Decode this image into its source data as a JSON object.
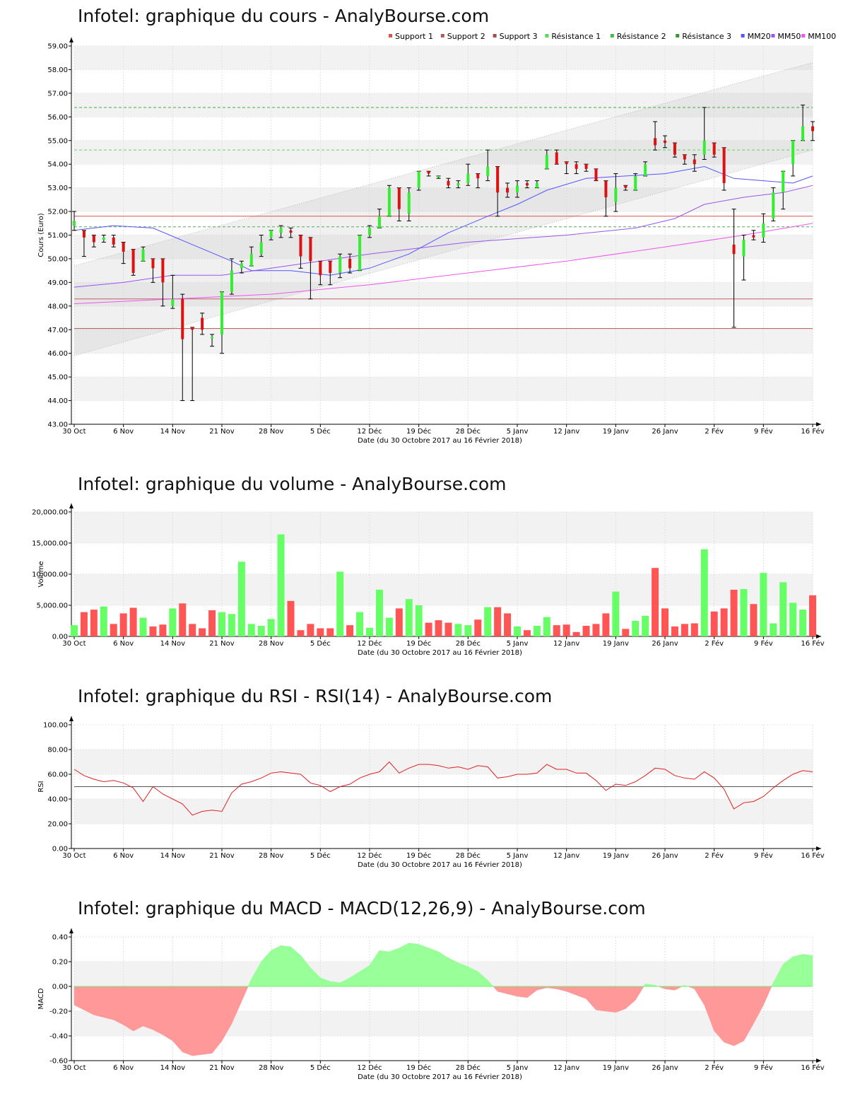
{
  "chart_data": [
    {
      "type": "candlestick",
      "title": "Infotel: graphique du cours - AnalyBourse.com",
      "xlabel": "Date (du 30 Octobre 2017 au 16 Février 2018)",
      "ylabel": "Cours (Euro)",
      "ylim": [
        43,
        59
      ],
      "x_tick_labels": [
        "30 Oct",
        "6 Nov",
        "14 Nov",
        "21 Nov",
        "28 Nov",
        "5 Déc",
        "12 Déc",
        "19 Déc",
        "28 Déc",
        "5 Janv",
        "12 Janv",
        "19 Janv",
        "26 Janv",
        "2 Fév",
        "9 Fév",
        "16 Fév"
      ],
      "y_tick_labels": [
        "43.00",
        "44.00",
        "45.00",
        "46.00",
        "47.00",
        "48.00",
        "49.00",
        "50.00",
        "51.00",
        "52.00",
        "53.00",
        "54.00",
        "55.00",
        "56.00",
        "57.00",
        "58.00",
        "59.00"
      ],
      "legend": [
        "Support 1",
        "Support 2",
        "Support 3",
        "Résistance 1",
        "Résistance 2",
        "Résistance 3",
        "MM20",
        "MM50",
        "MM100"
      ],
      "legend_colors": [
        "#d9534f",
        "#b05b5b",
        "#a04f4f",
        "#55dd55",
        "#44bb44",
        "#339933",
        "#5555ff",
        "#9955ee",
        "#ee55ee"
      ],
      "candles": [
        {
          "o": 51.4,
          "h": 52.0,
          "l": 51.2,
          "c": 51.6
        },
        {
          "o": 51.2,
          "h": 51.2,
          "l": 50.1,
          "c": 50.9
        },
        {
          "o": 51.0,
          "h": 51.0,
          "l": 50.5,
          "c": 50.7
        },
        {
          "o": 50.8,
          "h": 51.0,
          "l": 50.7,
          "c": 50.9
        },
        {
          "o": 50.9,
          "h": 51.0,
          "l": 50.5,
          "c": 50.6
        },
        {
          "o": 50.7,
          "h": 50.7,
          "l": 49.8,
          "c": 50.3
        },
        {
          "o": 50.4,
          "h": 50.4,
          "l": 49.3,
          "c": 49.4
        },
        {
          "o": 49.9,
          "h": 50.5,
          "l": 49.9,
          "c": 50.4
        },
        {
          "o": 50.0,
          "h": 50.0,
          "l": 49.0,
          "c": 49.6
        },
        {
          "o": 50.0,
          "h": 50.0,
          "l": 48.0,
          "c": 49.0
        },
        {
          "o": 48.0,
          "h": 49.3,
          "l": 47.9,
          "c": 48.3
        },
        {
          "o": 48.3,
          "h": 48.5,
          "l": 44.0,
          "c": 46.6
        },
        {
          "o": 47.1,
          "h": 47.1,
          "l": 44.0,
          "c": 47.0
        },
        {
          "o": 47.5,
          "h": 47.7,
          "l": 46.8,
          "c": 47.0
        },
        {
          "o": 46.7,
          "h": 46.8,
          "l": 46.3,
          "c": 46.7
        },
        {
          "o": 46.8,
          "h": 48.6,
          "l": 46.0,
          "c": 48.6
        },
        {
          "o": 48.6,
          "h": 50.0,
          "l": 48.5,
          "c": 49.5
        },
        {
          "o": 49.6,
          "h": 49.9,
          "l": 49.4,
          "c": 49.8
        },
        {
          "o": 49.7,
          "h": 50.5,
          "l": 49.7,
          "c": 50.2
        },
        {
          "o": 50.2,
          "h": 51.0,
          "l": 50.1,
          "c": 50.7
        },
        {
          "o": 50.9,
          "h": 51.2,
          "l": 50.8,
          "c": 51.2
        },
        {
          "o": 51.1,
          "h": 51.4,
          "l": 50.9,
          "c": 51.3
        },
        {
          "o": 51.2,
          "h": 51.3,
          "l": 50.9,
          "c": 51.1
        },
        {
          "o": 51.0,
          "h": 51.0,
          "l": 49.6,
          "c": 50.1
        },
        {
          "o": 50.9,
          "h": 50.9,
          "l": 48.3,
          "c": 49.9
        },
        {
          "o": 49.9,
          "h": 49.9,
          "l": 48.9,
          "c": 49.3
        },
        {
          "o": 49.9,
          "h": 49.9,
          "l": 48.9,
          "c": 49.4
        },
        {
          "o": 49.4,
          "h": 50.2,
          "l": 49.2,
          "c": 50.1
        },
        {
          "o": 50.0,
          "h": 50.2,
          "l": 49.4,
          "c": 49.6
        },
        {
          "o": 49.5,
          "h": 51.0,
          "l": 49.5,
          "c": 51.0
        },
        {
          "o": 51.0,
          "h": 51.4,
          "l": 50.9,
          "c": 51.3
        },
        {
          "o": 51.3,
          "h": 52.1,
          "l": 51.3,
          "c": 51.8
        },
        {
          "o": 51.8,
          "h": 53.1,
          "l": 51.8,
          "c": 53.0
        },
        {
          "o": 53.0,
          "h": 53.0,
          "l": 51.6,
          "c": 52.1
        },
        {
          "o": 51.9,
          "h": 53.0,
          "l": 51.6,
          "c": 52.8
        },
        {
          "o": 53.0,
          "h": 53.7,
          "l": 52.9,
          "c": 53.7
        },
        {
          "o": 53.7,
          "h": 53.7,
          "l": 53.5,
          "c": 53.6
        },
        {
          "o": 53.5,
          "h": 53.5,
          "l": 53.4,
          "c": 53.5
        },
        {
          "o": 53.3,
          "h": 53.4,
          "l": 53.0,
          "c": 53.1
        },
        {
          "o": 53.1,
          "h": 53.3,
          "l": 53.0,
          "c": 53.2
        },
        {
          "o": 53.2,
          "h": 54.0,
          "l": 53.1,
          "c": 53.6
        },
        {
          "o": 53.6,
          "h": 53.6,
          "l": 53.0,
          "c": 53.4
        },
        {
          "o": 53.5,
          "h": 54.6,
          "l": 53.3,
          "c": 53.9
        },
        {
          "o": 53.9,
          "h": 53.9,
          "l": 51.8,
          "c": 52.8
        },
        {
          "o": 53.0,
          "h": 53.2,
          "l": 52.6,
          "c": 52.8
        },
        {
          "o": 52.8,
          "h": 53.3,
          "l": 52.6,
          "c": 53.1
        },
        {
          "o": 53.2,
          "h": 53.3,
          "l": 53.0,
          "c": 53.1
        },
        {
          "o": 53.0,
          "h": 53.3,
          "l": 53.0,
          "c": 53.2
        },
        {
          "o": 53.8,
          "h": 54.6,
          "l": 53.8,
          "c": 54.4
        },
        {
          "o": 54.5,
          "h": 54.6,
          "l": 54.0,
          "c": 54.0
        },
        {
          "o": 54.1,
          "h": 54.1,
          "l": 53.6,
          "c": 54.0
        },
        {
          "o": 54.0,
          "h": 54.1,
          "l": 53.6,
          "c": 53.8
        },
        {
          "o": 54.0,
          "h": 54.0,
          "l": 53.7,
          "c": 53.8
        },
        {
          "o": 53.8,
          "h": 53.8,
          "l": 53.3,
          "c": 53.3
        },
        {
          "o": 53.3,
          "h": 53.3,
          "l": 51.8,
          "c": 52.6
        },
        {
          "o": 52.4,
          "h": 53.6,
          "l": 52.0,
          "c": 53.0
        },
        {
          "o": 53.1,
          "h": 53.1,
          "l": 52.9,
          "c": 53.0
        },
        {
          "o": 52.9,
          "h": 53.6,
          "l": 52.9,
          "c": 53.5
        },
        {
          "o": 53.5,
          "h": 54.1,
          "l": 53.5,
          "c": 54.0
        },
        {
          "o": 55.1,
          "h": 55.8,
          "l": 54.6,
          "c": 54.8
        },
        {
          "o": 55.0,
          "h": 55.2,
          "l": 54.7,
          "c": 54.9
        },
        {
          "o": 54.9,
          "h": 54.9,
          "l": 54.3,
          "c": 54.4
        },
        {
          "o": 54.4,
          "h": 54.4,
          "l": 54.0,
          "c": 54.2
        },
        {
          "o": 54.2,
          "h": 54.4,
          "l": 53.7,
          "c": 54.0
        },
        {
          "o": 54.4,
          "h": 56.4,
          "l": 54.2,
          "c": 55.0
        },
        {
          "o": 54.9,
          "h": 54.9,
          "l": 54.3,
          "c": 54.4
        },
        {
          "o": 54.7,
          "h": 54.7,
          "l": 52.9,
          "c": 53.2
        },
        {
          "o": 50.6,
          "h": 52.1,
          "l": 47.1,
          "c": 50.2
        },
        {
          "o": 50.1,
          "h": 51.0,
          "l": 49.1,
          "c": 50.8
        },
        {
          "o": 51.0,
          "h": 51.2,
          "l": 50.8,
          "c": 50.9
        },
        {
          "o": 50.9,
          "h": 51.9,
          "l": 50.7,
          "c": 51.5
        },
        {
          "o": 51.7,
          "h": 53.0,
          "l": 51.6,
          "c": 52.8
        },
        {
          "o": 52.8,
          "h": 53.7,
          "l": 52.1,
          "c": 53.7
        },
        {
          "o": 54.0,
          "h": 55.0,
          "l": 53.5,
          "c": 55.0
        },
        {
          "o": 55.0,
          "h": 56.5,
          "l": 55.0,
          "c": 55.6
        },
        {
          "o": 55.6,
          "h": 55.8,
          "l": 55.0,
          "c": 55.4
        }
      ],
      "support": [
        51.8,
        48.3,
        47.05
      ],
      "resistance": [
        51.35,
        54.6,
        56.4
      ],
      "channel_upper": [
        49.7,
        58.3
      ],
      "channel_lower": [
        45.9,
        54.6
      ],
      "mm20": [
        [
          0,
          51.2
        ],
        [
          4,
          51.4
        ],
        [
          8,
          51.3
        ],
        [
          12,
          50.6
        ],
        [
          16,
          49.9
        ],
        [
          18,
          49.5
        ],
        [
          22,
          49.5
        ],
        [
          26,
          49.3
        ],
        [
          30,
          49.6
        ],
        [
          34,
          50.2
        ],
        [
          38,
          51.1
        ],
        [
          42,
          51.8
        ],
        [
          45,
          52.3
        ],
        [
          48,
          52.9
        ],
        [
          52,
          53.4
        ],
        [
          56,
          53.5
        ],
        [
          60,
          53.6
        ],
        [
          64,
          53.9
        ],
        [
          67,
          53.4
        ],
        [
          70,
          53.3
        ],
        [
          73,
          53.2
        ],
        [
          75,
          53.5
        ]
      ],
      "mm50": [
        [
          0,
          48.8
        ],
        [
          5,
          49.0
        ],
        [
          10,
          49.3
        ],
        [
          15,
          49.3
        ],
        [
          20,
          49.6
        ],
        [
          30,
          50.2
        ],
        [
          40,
          50.7
        ],
        [
          50,
          51.0
        ],
        [
          57,
          51.3
        ],
        [
          61,
          51.7
        ],
        [
          64,
          52.3
        ],
        [
          68,
          52.6
        ],
        [
          72,
          52.8
        ],
        [
          75,
          53.1
        ]
      ],
      "mm100": [
        [
          0,
          48.1
        ],
        [
          10,
          48.3
        ],
        [
          20,
          48.5
        ],
        [
          30,
          48.9
        ],
        [
          40,
          49.4
        ],
        [
          50,
          49.9
        ],
        [
          60,
          50.5
        ],
        [
          68,
          51.0
        ],
        [
          75,
          51.5
        ]
      ]
    },
    {
      "type": "bar",
      "title": "Infotel: graphique du volume - AnalyBourse.com",
      "xlabel": "Date (du 30 Octobre 2017 au 16 Février 2018)",
      "ylabel": "Volume",
      "ylim": [
        0,
        20000
      ],
      "y_tick_labels": [
        "0.00",
        "5,000.00",
        "10,000.00",
        "15,000.00",
        "20,000.00"
      ],
      "x_tick_labels": [
        "30 Oct",
        "6 Nov",
        "14 Nov",
        "21 Nov",
        "28 Nov",
        "5 Déc",
        "12 Déc",
        "19 Déc",
        "28 Déc",
        "5 Janv",
        "12 Janv",
        "19 Janv",
        "26 Janv",
        "2 Fév",
        "9 Fév",
        "16 Fév"
      ],
      "values": [
        1800,
        3900,
        4300,
        4800,
        2000,
        3700,
        4600,
        3000,
        1600,
        1900,
        4500,
        5300,
        2000,
        1300,
        4200,
        3900,
        3600,
        12000,
        2000,
        1700,
        2800,
        16400,
        5700,
        1000,
        2000,
        1300,
        1300,
        10400,
        1800,
        3900,
        1400,
        7500,
        3000,
        4500,
        6000,
        5000,
        2200,
        2600,
        2200,
        2000,
        1800,
        2700,
        4700,
        4700,
        3700,
        1600,
        1000,
        1700,
        3100,
        1800,
        1900,
        700,
        1700,
        2000,
        3700,
        7200,
        1200,
        2500,
        3300,
        11000,
        4500,
        1600,
        2000,
        2100,
        14000,
        4000,
        4500,
        7500,
        7600,
        5200,
        10200,
        2100,
        8700,
        5400,
        4300,
        6600
      ],
      "up": [
        true,
        false,
        false,
        true,
        false,
        false,
        false,
        true,
        false,
        false,
        true,
        false,
        false,
        false,
        false,
        true,
        true,
        true,
        true,
        true,
        true,
        true,
        false,
        false,
        false,
        false,
        false,
        true,
        false,
        true,
        true,
        true,
        true,
        false,
        true,
        true,
        false,
        false,
        false,
        true,
        true,
        false,
        true,
        false,
        false,
        true,
        false,
        true,
        true,
        false,
        false,
        false,
        false,
        false,
        false,
        true,
        false,
        true,
        true,
        false,
        false,
        false,
        false,
        false,
        true,
        false,
        false,
        false,
        true,
        false,
        true,
        true,
        true,
        true,
        true,
        false
      ]
    },
    {
      "type": "line",
      "title": "Infotel: graphique du RSI - RSI(14) - AnalyBourse.com",
      "xlabel": "Date (du 30 Octobre 2017 au 16 Février 2018)",
      "ylabel": "RSI",
      "ylim": [
        0,
        100
      ],
      "y_tick_labels": [
        "0.00",
        "20.00",
        "40.00",
        "60.00",
        "80.00",
        "100.00"
      ],
      "x_tick_labels": [
        "30 Oct",
        "6 Nov",
        "14 Nov",
        "21 Nov",
        "28 Nov",
        "5 Déc",
        "12 Déc",
        "19 Déc",
        "28 Déc",
        "5 Janv",
        "12 Janv",
        "19 Janv",
        "26 Janv",
        "2 Fév",
        "9 Fév",
        "16 Fév"
      ],
      "reference_line": 50,
      "values": [
        64,
        59,
        56,
        54,
        55,
        53,
        49,
        38,
        50,
        44,
        40,
        36,
        27,
        30,
        31,
        30,
        45,
        52,
        54,
        57,
        61,
        62,
        61,
        60,
        53,
        51,
        46,
        50,
        52,
        57,
        60,
        62,
        70,
        61,
        65,
        68,
        68,
        67,
        65,
        66,
        64,
        67,
        66,
        57,
        58,
        60,
        60,
        61,
        68,
        64,
        64,
        61,
        61,
        55,
        47,
        52,
        51,
        54,
        59,
        65,
        64,
        59,
        57,
        56,
        62,
        57,
        48,
        32,
        37,
        38,
        42,
        49,
        55,
        60,
        63,
        62
      ]
    },
    {
      "type": "area",
      "title": "Infotel: graphique du MACD - MACD(12,26,9) - AnalyBourse.com",
      "xlabel": "Date (du 30 Octobre 2017 au 16 Février 2018)",
      "ylabel": "MACD",
      "ylim": [
        -0.6,
        0.4
      ],
      "y_tick_labels": [
        "-0.60",
        "-0.40",
        "-0.20",
        "0.00",
        "0.20",
        "0.40"
      ],
      "x_tick_labels": [
        "30 Oct",
        "6 Nov",
        "14 Nov",
        "21 Nov",
        "28 Nov",
        "5 Déc",
        "12 Déc",
        "19 Déc",
        "28 Déc",
        "5 Janv",
        "12 Janv",
        "19 Janv",
        "26 Janv",
        "2 Fév",
        "9 Fév",
        "16 Fév"
      ],
      "positive_color": "#99ff99",
      "negative_color": "#ff9999",
      "values": [
        -0.15,
        -0.19,
        -0.23,
        -0.25,
        -0.27,
        -0.31,
        -0.36,
        -0.32,
        -0.35,
        -0.39,
        -0.44,
        -0.53,
        -0.56,
        -0.55,
        -0.54,
        -0.44,
        -0.3,
        -0.12,
        0.06,
        0.2,
        0.29,
        0.33,
        0.32,
        0.25,
        0.15,
        0.07,
        0.04,
        0.03,
        0.07,
        0.12,
        0.17,
        0.29,
        0.28,
        0.31,
        0.35,
        0.34,
        0.31,
        0.28,
        0.23,
        0.19,
        0.16,
        0.12,
        0.05,
        -0.04,
        -0.06,
        -0.08,
        -0.09,
        -0.03,
        -0.01,
        -0.02,
        -0.04,
        -0.07,
        -0.1,
        -0.19,
        -0.2,
        -0.21,
        -0.18,
        -0.11,
        0.02,
        0.01,
        -0.02,
        -0.03,
        0.01,
        -0.02,
        -0.15,
        -0.36,
        -0.45,
        -0.48,
        -0.44,
        -0.3,
        -0.15,
        0.03,
        0.18,
        0.24,
        0.26,
        0.25
      ]
    }
  ]
}
